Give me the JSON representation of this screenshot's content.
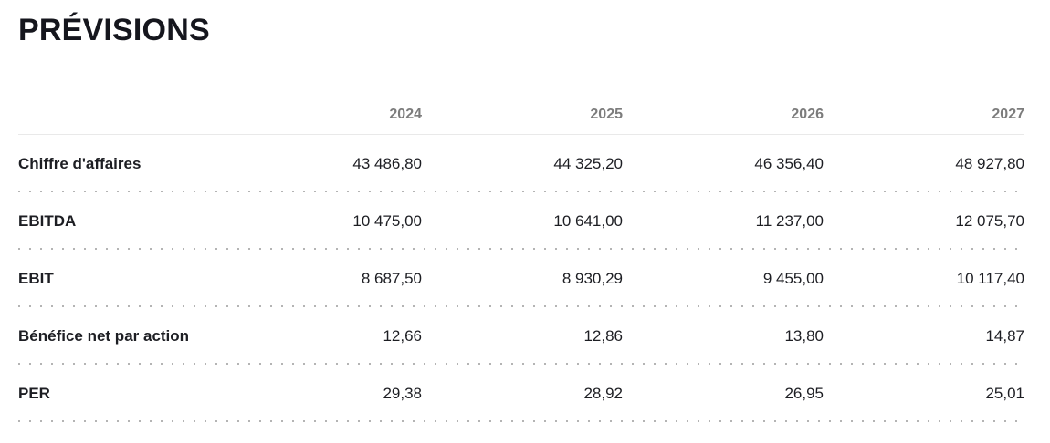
{
  "page": {
    "title": "PRÉVISIONS"
  },
  "table": {
    "columns": [
      "2024",
      "2025",
      "2026",
      "2027"
    ],
    "rows": [
      {
        "label": "Chiffre d'affaires",
        "values": [
          "43 486,80",
          "44 325,20",
          "46 356,40",
          "48 927,80"
        ]
      },
      {
        "label": "EBITDA",
        "values": [
          "10 475,00",
          "10 641,00",
          "11 237,00",
          "12 075,70"
        ]
      },
      {
        "label": "EBIT",
        "values": [
          "8 687,50",
          "8 930,29",
          "9 455,00",
          "10 117,40"
        ]
      },
      {
        "label": "Bénéfice net par action",
        "values": [
          "12,66",
          "12,86",
          "13,80",
          "14,87"
        ]
      },
      {
        "label": "PER",
        "values": [
          "29,38",
          "28,92",
          "26,95",
          "25,01"
        ]
      }
    ]
  },
  "colors": {
    "title_text": "#15161d",
    "body_text": "#1d1e23",
    "year_header_text": "#7c7c7c",
    "header_rule": "#e9e9e9",
    "dotted_separator": "#b4b4b4",
    "background": "#ffffff"
  }
}
